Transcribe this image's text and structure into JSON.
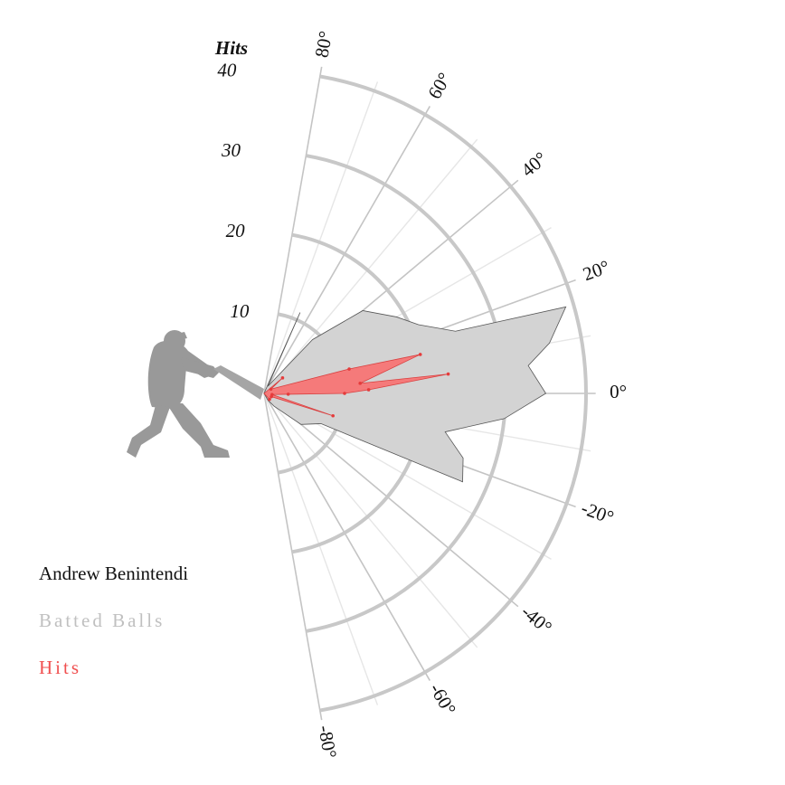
{
  "chart_data": {
    "type": "radar",
    "radial_axis_label": "Hits",
    "radial_ticks": [
      "10",
      "20",
      "30",
      "40"
    ],
    "radial_max": 40,
    "angle_ticks": [
      "80°",
      "60°",
      "40°",
      "20°",
      "0°",
      "-20°",
      "-40°",
      "-60°",
      "-80°"
    ],
    "angle_range": [
      -80,
      80
    ],
    "player": "Andrew Benintendi",
    "series": [
      {
        "name": "Batted Balls",
        "color": "#c0c0c0",
        "fill": "#d3d3d3",
        "points": [
          {
            "angle": 66,
            "value": 11
          },
          {
            "angle": 62,
            "value": 1
          },
          {
            "angle": 48,
            "value": 9
          },
          {
            "angle": 40,
            "value": 16
          },
          {
            "angle": 30,
            "value": 19
          },
          {
            "angle": 24,
            "value": 21
          },
          {
            "angle": 18,
            "value": 25
          },
          {
            "angle": 16,
            "value": 39
          },
          {
            "angle": 10,
            "value": 36
          },
          {
            "angle": 6,
            "value": 33
          },
          {
            "angle": 0,
            "value": 35
          },
          {
            "angle": -6,
            "value": 30
          },
          {
            "angle": -12,
            "value": 23
          },
          {
            "angle": -18,
            "value": 26
          },
          {
            "angle": -24,
            "value": 27
          },
          {
            "angle": -28,
            "value": 8
          },
          {
            "angle": -40,
            "value": 6
          },
          {
            "angle": -52,
            "value": 2
          },
          {
            "angle": -60,
            "value": 1
          }
        ]
      },
      {
        "name": "Hits",
        "color": "#f05050",
        "fill": "#f57a7a",
        "points": [
          {
            "angle": 40,
            "value": 3
          },
          {
            "angle": 32,
            "value": 1
          },
          {
            "angle": 16,
            "value": 11
          },
          {
            "angle": 14,
            "value": 20
          },
          {
            "angle": 6,
            "value": 12
          },
          {
            "angle": 6,
            "value": 23
          },
          {
            "angle": 2,
            "value": 13
          },
          {
            "angle": 0,
            "value": 10
          },
          {
            "angle": -2,
            "value": 3
          },
          {
            "angle": -8,
            "value": 1
          },
          {
            "angle": -18,
            "value": 9
          },
          {
            "angle": -24,
            "value": 1
          },
          {
            "angle": -48,
            "value": 1
          }
        ]
      }
    ]
  },
  "legend": {
    "player": "Andrew Benintendi",
    "batted": "Batted Balls",
    "hits": "Hits"
  },
  "colors": {
    "player_text": "#111111",
    "batted_text": "#c0c0c0",
    "hits_text": "#f05050",
    "silhouette": "#999999"
  },
  "icons": {
    "batter": "batter-silhouette-icon"
  }
}
